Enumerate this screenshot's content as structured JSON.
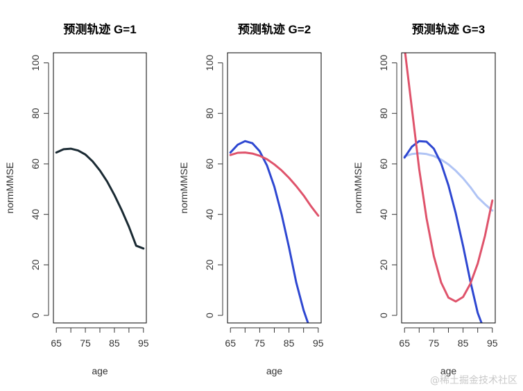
{
  "watermark": "@稀土掘金技术社区",
  "chart_data": [
    {
      "type": "line",
      "title": "预测轨迹 G=1",
      "xlabel": "age",
      "ylabel": "normMMSE",
      "xlim": [
        64,
        96
      ],
      "ylim": [
        -3,
        104
      ],
      "xticks": [
        65,
        75,
        85,
        95
      ],
      "xticks_minor": [
        65,
        70,
        75,
        80,
        85,
        90,
        95
      ],
      "yticks": [
        0,
        20,
        40,
        60,
        80,
        100
      ],
      "series": [
        {
          "color": "#1a2a33",
          "x": [
            65,
            67.5,
            70,
            72.5,
            75,
            77.5,
            80,
            82.5,
            85,
            87.5,
            90,
            92.5,
            95
          ],
          "y": [
            64.5,
            65.8,
            66.0,
            65.3,
            63.7,
            61.0,
            57.4,
            53.0,
            47.7,
            41.7,
            35.1,
            27.6,
            26.5
          ]
        }
      ]
    },
    {
      "type": "line",
      "title": "预测轨迹 G=2",
      "xlabel": "age",
      "ylabel": "normMMSE",
      "xlim": [
        64,
        96
      ],
      "ylim": [
        -3,
        104
      ],
      "xticks": [
        65,
        75,
        85,
        95
      ],
      "xticks_minor": [
        65,
        70,
        75,
        80,
        85,
        90,
        95
      ],
      "yticks": [
        0,
        20,
        40,
        60,
        80,
        100
      ],
      "series": [
        {
          "color": "#2e47d1",
          "x": [
            65,
            67.5,
            70,
            72.5,
            75,
            77.5,
            80,
            82.5,
            85,
            87.5,
            90,
            91.5
          ],
          "y": [
            64.5,
            67.6,
            69.0,
            68.2,
            65.0,
            59.3,
            51.0,
            40.0,
            27.0,
            13.0,
            2.0,
            -3
          ]
        },
        {
          "color": "#df536b",
          "x": [
            65,
            67.5,
            70,
            72.5,
            75,
            77.5,
            80,
            82.5,
            85,
            87.5,
            90,
            92.5,
            95
          ],
          "y": [
            63.5,
            64.4,
            64.5,
            64.1,
            63.2,
            61.8,
            59.8,
            57.4,
            54.5,
            51.2,
            47.5,
            43.3,
            39.5
          ]
        }
      ]
    },
    {
      "type": "line",
      "title": "预测轨迹 G=3",
      "xlabel": "age",
      "ylabel": "normMMSE",
      "xlim": [
        64,
        96
      ],
      "ylim": [
        -3,
        104
      ],
      "xticks": [
        65,
        75,
        85,
        95
      ],
      "xticks_minor": [
        65,
        70,
        75,
        80,
        85,
        90,
        95
      ],
      "yticks": [
        0,
        20,
        40,
        60,
        80,
        100
      ],
      "series": [
        {
          "color": "#b0c4f5",
          "x": [
            65,
            67.5,
            70,
            72.5,
            75,
            77.5,
            80,
            82.5,
            85,
            87.5,
            90,
            92.5,
            95
          ],
          "y": [
            63.0,
            63.9,
            64.2,
            63.9,
            63.1,
            61.7,
            59.8,
            57.3,
            54.3,
            50.8,
            46.8,
            44.0,
            41.5
          ]
        },
        {
          "color": "#2e47d1",
          "x": [
            65,
            67.5,
            70,
            72.5,
            75,
            77.5,
            80,
            82.5,
            85,
            87.5,
            90,
            91.3
          ],
          "y": [
            62.5,
            66.8,
            69.0,
            68.8,
            66.0,
            60.2,
            51.5,
            40.5,
            27.5,
            13.5,
            1.0,
            -3
          ]
        },
        {
          "color": "#df536b",
          "x": [
            65.2,
            67.5,
            70,
            72.5,
            75,
            77.5,
            80,
            82.5,
            85,
            87.5,
            90,
            92.5,
            95
          ],
          "y": [
            104,
            82.0,
            58.0,
            38.5,
            23.5,
            13.0,
            7.0,
            5.5,
            7.3,
            12.5,
            20.5,
            31.5,
            45.5
          ]
        }
      ]
    }
  ]
}
